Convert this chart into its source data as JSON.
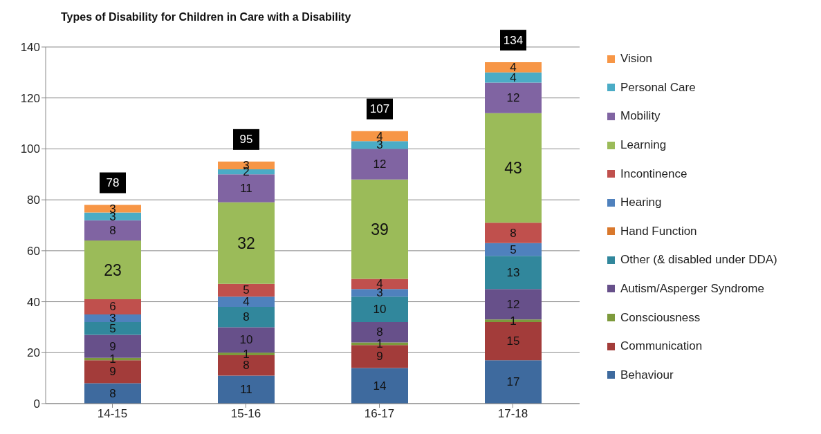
{
  "chart_data": {
    "type": "bar",
    "title": "Types of Disability for Children in Care with a Disability",
    "categories": [
      "14-15",
      "15-16",
      "16-17",
      "17-18"
    ],
    "stacked": true,
    "data_labels": true,
    "legend": "right",
    "grid": "y",
    "ylim": [
      0,
      140
    ],
    "yticks": [
      0,
      20,
      40,
      60,
      80,
      100,
      120,
      140
    ],
    "totals": [
      "78",
      "95",
      "107",
      "134"
    ],
    "series": [
      {
        "name": "Behaviour",
        "color": "#3e6a9e",
        "values": [
          8,
          11,
          14,
          17
        ]
      },
      {
        "name": "Communication",
        "color": "#a33c3a",
        "values": [
          9,
          8,
          9,
          15
        ]
      },
      {
        "name": "Consciousness",
        "color": "#7d9a3c",
        "values": [
          1,
          1,
          1,
          1
        ]
      },
      {
        "name": "Autism/Asperger Syndrome",
        "color": "#67508a",
        "values": [
          9,
          10,
          8,
          12
        ]
      },
      {
        "name": "Other (& disabled under DDA)",
        "color": "#31879c",
        "values": [
          5,
          8,
          10,
          13
        ]
      },
      {
        "name": "Hand Function",
        "color": "#d9782c",
        "values": [
          null,
          null,
          null,
          null
        ]
      },
      {
        "name": "Hearing",
        "color": "#4f81bd",
        "values": [
          3,
          4,
          3,
          5
        ]
      },
      {
        "name": "Incontinence",
        "color": "#c0504d",
        "values": [
          6,
          5,
          4,
          8
        ]
      },
      {
        "name": "Learning",
        "color": "#9bbb59",
        "values": [
          23,
          32,
          39,
          43
        ]
      },
      {
        "name": "Mobility",
        "color": "#8064a2",
        "values": [
          8,
          11,
          12,
          12
        ]
      },
      {
        "name": "Personal Care",
        "color": "#4bacc6",
        "values": [
          3,
          2,
          3,
          4
        ]
      },
      {
        "name": "Vision",
        "color": "#f79646",
        "values": [
          3,
          3,
          4,
          4
        ]
      }
    ]
  }
}
